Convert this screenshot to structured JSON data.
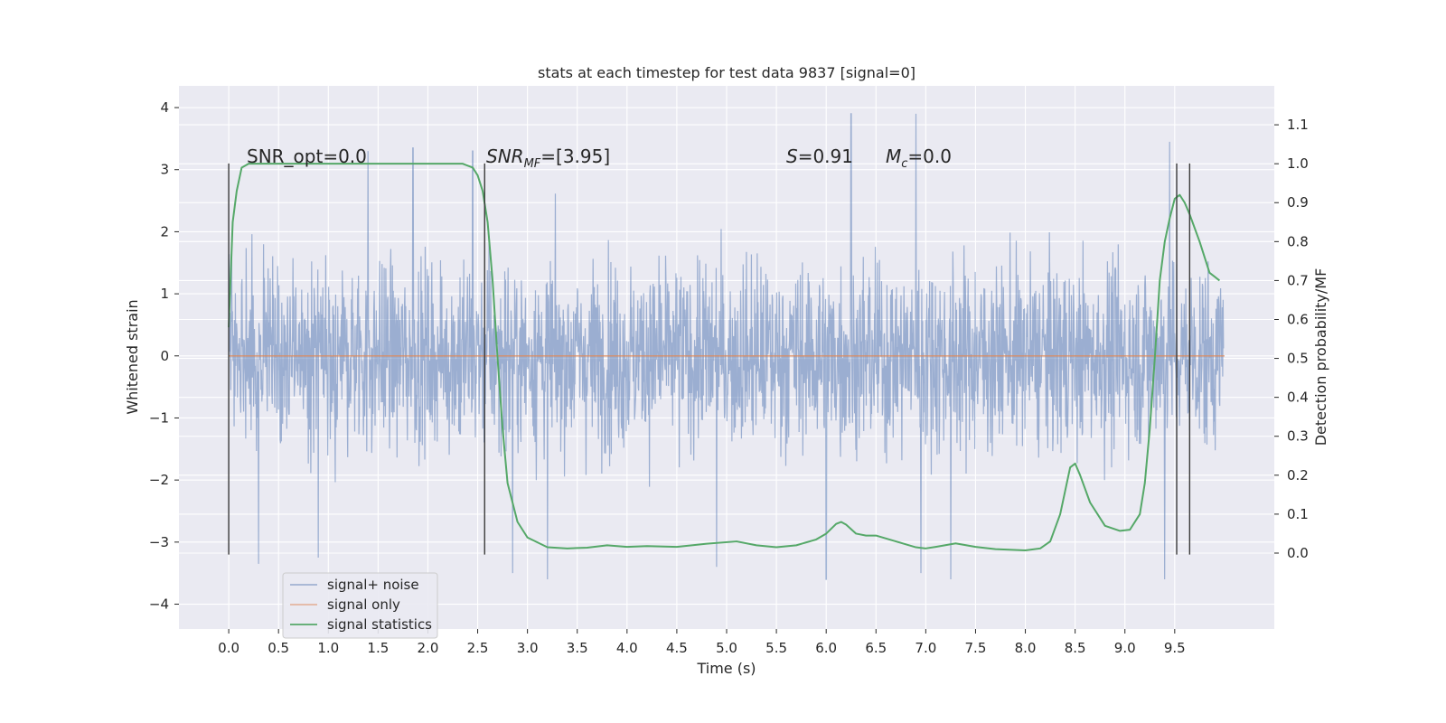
{
  "chart_data": {
    "type": "line",
    "title": "stats at each timestep for test data 9837 [signal=0]",
    "xlabel": "Time (s)",
    "ylabel": "Whitened strain",
    "y2label": "Detection probability/MF",
    "xlim": [
      -0.5,
      10.5
    ],
    "ylim": [
      -4.4,
      4.35
    ],
    "y2lim": [
      -0.195,
      1.2
    ],
    "x_ticks": [
      0.0,
      0.5,
      1.0,
      1.5,
      2.0,
      2.5,
      3.0,
      3.5,
      4.0,
      4.5,
      5.0,
      5.5,
      6.0,
      6.5,
      7.0,
      7.5,
      8.0,
      8.5,
      9.0,
      9.5
    ],
    "x_tick_labels": [
      "0.0",
      "0.5",
      "1.0",
      "1.5",
      "2.0",
      "2.5",
      "3.0",
      "3.5",
      "4.0",
      "4.5",
      "5.0",
      "5.5",
      "6.0",
      "6.5",
      "7.0",
      "7.5",
      "8.0",
      "8.5",
      "9.0",
      "9.5"
    ],
    "y_ticks": [
      4,
      3,
      2,
      1,
      0,
      -1,
      -2,
      -3,
      -4
    ],
    "y_tick_labels": [
      "4",
      "3",
      "2",
      "1",
      "0",
      "−1",
      "−2",
      "−3",
      "−4"
    ],
    "y2_ticks": [
      1.1,
      1.0,
      0.9,
      0.8,
      0.7,
      0.6,
      0.5,
      0.4,
      0.3,
      0.2,
      0.1,
      0.0
    ],
    "y2_tick_labels": [
      "1.1",
      "1.0",
      "0.9",
      "0.8",
      "0.7",
      "0.6",
      "0.5",
      "0.4",
      "0.3",
      "0.2",
      "0.1",
      "0.0"
    ],
    "grid": true,
    "legend_position": "lower-left",
    "series": [
      {
        "name": "signal+ noise",
        "axis": "left",
        "color": "#4c72b0",
        "x_range": [
          0.0,
          9.99
        ],
        "approx_envelope": [
          -3.6,
          3.9
        ],
        "note_peaks": [
          [
            1.4,
            3.3
          ],
          [
            1.85,
            3.35
          ],
          [
            2.45,
            3.3
          ],
          [
            6.25,
            3.95
          ],
          [
            6.9,
            3.9
          ],
          [
            9.45,
            3.45
          ],
          [
            2.85,
            -3.5
          ],
          [
            3.2,
            -3.85
          ],
          [
            4.9,
            -3.4
          ],
          [
            6.0,
            -3.6
          ],
          [
            6.95,
            -3.5
          ],
          [
            7.25,
            -3.9
          ],
          [
            9.4,
            -3.6
          ],
          [
            0.3,
            -3.35
          ],
          [
            0.9,
            -3.25
          ]
        ]
      },
      {
        "name": "signal only",
        "axis": "left",
        "color": "#dd8452",
        "x": [
          0.0,
          10.0
        ],
        "y": [
          0.0,
          0.0
        ]
      },
      {
        "name": "signal statistics",
        "axis": "right",
        "color": "#55a868",
        "x": [
          0.0,
          0.04,
          0.08,
          0.13,
          0.2,
          0.3,
          0.5,
          1.0,
          1.5,
          2.0,
          2.2,
          2.35,
          2.45,
          2.5,
          2.55,
          2.6,
          2.65,
          2.7,
          2.75,
          2.8,
          2.9,
          3.0,
          3.2,
          3.4,
          3.6,
          3.8,
          4.0,
          4.2,
          4.5,
          4.8,
          5.1,
          5.3,
          5.5,
          5.7,
          5.9,
          6.0,
          6.1,
          6.15,
          6.2,
          6.3,
          6.4,
          6.5,
          6.7,
          6.9,
          7.0,
          7.1,
          7.3,
          7.5,
          7.7,
          8.0,
          8.15,
          8.25,
          8.35,
          8.45,
          8.5,
          8.55,
          8.65,
          8.8,
          8.95,
          9.05,
          9.15,
          9.2,
          9.25,
          9.3,
          9.35,
          9.4,
          9.45,
          9.5,
          9.55,
          9.6,
          9.65,
          9.75,
          9.85,
          9.9,
          9.95
        ],
        "y": [
          0.58,
          0.85,
          0.93,
          0.99,
          1.0,
          1.0,
          1.0,
          1.0,
          1.0,
          1.0,
          1.0,
          1.0,
          0.99,
          0.97,
          0.93,
          0.85,
          0.7,
          0.5,
          0.32,
          0.18,
          0.08,
          0.04,
          0.015,
          0.012,
          0.014,
          0.02,
          0.016,
          0.018,
          0.016,
          0.024,
          0.03,
          0.02,
          0.015,
          0.02,
          0.035,
          0.05,
          0.075,
          0.08,
          0.073,
          0.05,
          0.045,
          0.045,
          0.03,
          0.015,
          0.012,
          0.016,
          0.025,
          0.016,
          0.01,
          0.007,
          0.012,
          0.03,
          0.1,
          0.22,
          0.23,
          0.2,
          0.13,
          0.07,
          0.057,
          0.06,
          0.1,
          0.18,
          0.32,
          0.5,
          0.7,
          0.8,
          0.86,
          0.91,
          0.92,
          0.9,
          0.87,
          0.8,
          0.72,
          0.71,
          0.7
        ]
      }
    ],
    "vertical_markers": [
      0.0,
      2.57,
      9.52,
      9.65
    ],
    "vertical_marker_range": [
      -3.2,
      3.1
    ],
    "annotations": [
      {
        "text": "SNR_opt=0.0",
        "x": 0.2,
        "y": 3.05
      },
      {
        "text_main": "SNR",
        "text_sub": "MF",
        "text_rest": "=[3.95]",
        "x": 2.6,
        "y": 3.05
      },
      {
        "text_main": "S",
        "text_rest": "=0.91",
        "x": 5.6,
        "y": 3.05
      },
      {
        "text_main": "M",
        "text_sub": "c",
        "text_rest": "=0.0",
        "x": 6.6,
        "y": 3.05
      }
    ]
  }
}
